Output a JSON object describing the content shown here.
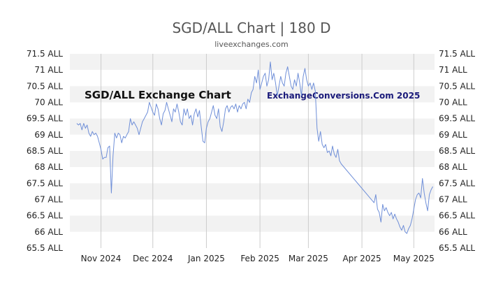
{
  "chart_data": {
    "type": "line",
    "title": "SGD/ALL Chart | 180 D",
    "subtitle": "liveexchanges.com",
    "watermark_left": "SGD/ALL Exchange Chart",
    "watermark_right": "ExchangeConversions.Com 2025",
    "xlabel": "",
    "ylabel": "",
    "grid": "horizontal-bands",
    "ylim": [
      65.5,
      71.5
    ],
    "y_ticks": [
      {
        "value": 71.5,
        "label": "71.5 ALL"
      },
      {
        "value": 71,
        "label": "71 ALL"
      },
      {
        "value": 70.5,
        "label": "70.5 ALL"
      },
      {
        "value": 70,
        "label": "70 ALL"
      },
      {
        "value": 69.5,
        "label": "69.5 ALL"
      },
      {
        "value": 69,
        "label": "69 ALL"
      },
      {
        "value": 68.5,
        "label": "68.5 ALL"
      },
      {
        "value": 68,
        "label": "68 ALL"
      },
      {
        "value": 67.5,
        "label": "67.5 ALL"
      },
      {
        "value": 67,
        "label": "67 ALL"
      },
      {
        "value": 66.5,
        "label": "66.5 ALL"
      },
      {
        "value": 66,
        "label": "66 ALL"
      },
      {
        "value": 65.5,
        "label": "65.5 ALL"
      }
    ],
    "xlim": [
      "2024-10-14",
      "2025-05-13"
    ],
    "x_ticks": [
      {
        "date": "2024-11-01",
        "label": "Nov 2024"
      },
      {
        "date": "2024-12-01",
        "label": "Dec 2024"
      },
      {
        "date": "2025-01-01",
        "label": "Jan 2025"
      },
      {
        "date": "2025-02-01",
        "label": "Feb 2025"
      },
      {
        "date": "2025-03-01",
        "label": "Mar 2025"
      },
      {
        "date": "2025-04-01",
        "label": "Apr 2025"
      },
      {
        "date": "2025-05-01",
        "label": "May 2025"
      }
    ],
    "series": [
      {
        "color": "#6f8fd8",
        "points": [
          [
            "2024-10-18",
            69.35
          ],
          [
            "2024-10-19",
            69.3
          ],
          [
            "2024-10-20",
            69.35
          ],
          [
            "2024-10-21",
            69.15
          ],
          [
            "2024-10-22",
            69.35
          ],
          [
            "2024-10-23",
            69.2
          ],
          [
            "2024-10-24",
            69.3
          ],
          [
            "2024-10-25",
            69.05
          ],
          [
            "2024-10-26",
            68.95
          ],
          [
            "2024-10-27",
            69.1
          ],
          [
            "2024-10-28",
            69.0
          ],
          [
            "2024-10-29",
            69.05
          ],
          [
            "2024-10-30",
            68.95
          ],
          [
            "2024-10-31",
            68.75
          ],
          [
            "2024-11-01",
            68.55
          ],
          [
            "2024-11-02",
            68.25
          ],
          [
            "2024-11-03",
            68.3
          ],
          [
            "2024-11-04",
            68.3
          ],
          [
            "2024-11-05",
            68.6
          ],
          [
            "2024-11-06",
            68.65
          ],
          [
            "2024-11-07",
            67.2
          ],
          [
            "2024-11-08",
            68.35
          ],
          [
            "2024-11-09",
            69.05
          ],
          [
            "2024-11-10",
            68.9
          ],
          [
            "2024-11-11",
            69.05
          ],
          [
            "2024-11-12",
            69.0
          ],
          [
            "2024-11-13",
            68.75
          ],
          [
            "2024-11-14",
            68.95
          ],
          [
            "2024-11-15",
            68.9
          ],
          [
            "2024-11-16",
            69.0
          ],
          [
            "2024-11-17",
            69.1
          ],
          [
            "2024-11-18",
            69.5
          ],
          [
            "2024-11-19",
            69.3
          ],
          [
            "2024-11-20",
            69.4
          ],
          [
            "2024-11-21",
            69.3
          ],
          [
            "2024-11-22",
            69.2
          ],
          [
            "2024-11-23",
            69.0
          ],
          [
            "2024-11-24",
            69.2
          ],
          [
            "2024-11-25",
            69.4
          ],
          [
            "2024-11-26",
            69.5
          ],
          [
            "2024-11-27",
            69.6
          ],
          [
            "2024-11-28",
            69.7
          ],
          [
            "2024-11-29",
            70.0
          ],
          [
            "2024-11-30",
            69.85
          ],
          [
            "2024-12-01",
            69.7
          ],
          [
            "2024-12-02",
            69.6
          ],
          [
            "2024-12-03",
            69.95
          ],
          [
            "2024-12-04",
            69.8
          ],
          [
            "2024-12-05",
            69.5
          ],
          [
            "2024-12-06",
            69.3
          ],
          [
            "2024-12-07",
            69.65
          ],
          [
            "2024-12-08",
            69.75
          ],
          [
            "2024-12-09",
            70.0
          ],
          [
            "2024-12-10",
            69.8
          ],
          [
            "2024-12-11",
            69.6
          ],
          [
            "2024-12-12",
            69.4
          ],
          [
            "2024-12-13",
            69.8
          ],
          [
            "2024-12-14",
            69.7
          ],
          [
            "2024-12-15",
            69.95
          ],
          [
            "2024-12-16",
            69.7
          ],
          [
            "2024-12-17",
            69.4
          ],
          [
            "2024-12-18",
            69.3
          ],
          [
            "2024-12-19",
            69.8
          ],
          [
            "2024-12-20",
            69.6
          ],
          [
            "2024-12-21",
            69.8
          ],
          [
            "2024-12-22",
            69.5
          ],
          [
            "2024-12-23",
            69.6
          ],
          [
            "2024-12-24",
            69.3
          ],
          [
            "2024-12-25",
            69.65
          ],
          [
            "2024-12-26",
            69.8
          ],
          [
            "2024-12-27",
            69.55
          ],
          [
            "2024-12-28",
            69.75
          ],
          [
            "2024-12-29",
            69.25
          ],
          [
            "2024-12-30",
            68.8
          ],
          [
            "2024-12-31",
            68.75
          ],
          [
            "2025-01-01",
            69.2
          ],
          [
            "2025-01-02",
            69.4
          ],
          [
            "2025-01-03",
            69.5
          ],
          [
            "2025-01-04",
            69.7
          ],
          [
            "2025-01-05",
            69.9
          ],
          [
            "2025-01-06",
            69.6
          ],
          [
            "2025-01-07",
            69.5
          ],
          [
            "2025-01-08",
            69.8
          ],
          [
            "2025-01-09",
            69.25
          ],
          [
            "2025-01-10",
            69.1
          ],
          [
            "2025-01-11",
            69.4
          ],
          [
            "2025-01-12",
            69.8
          ],
          [
            "2025-01-13",
            69.9
          ],
          [
            "2025-01-14",
            69.7
          ],
          [
            "2025-01-15",
            69.85
          ],
          [
            "2025-01-16",
            69.9
          ],
          [
            "2025-01-17",
            69.8
          ],
          [
            "2025-01-18",
            69.95
          ],
          [
            "2025-01-19",
            69.7
          ],
          [
            "2025-01-20",
            69.9
          ],
          [
            "2025-01-21",
            69.8
          ],
          [
            "2025-01-22",
            69.95
          ],
          [
            "2025-01-23",
            70.0
          ],
          [
            "2025-01-24",
            69.8
          ],
          [
            "2025-01-25",
            70.1
          ],
          [
            "2025-01-26",
            70.0
          ],
          [
            "2025-01-27",
            70.3
          ],
          [
            "2025-01-28",
            70.4
          ],
          [
            "2025-01-29",
            70.8
          ],
          [
            "2025-01-30",
            70.6
          ],
          [
            "2025-01-31",
            71.0
          ],
          [
            "2025-02-01",
            70.4
          ],
          [
            "2025-02-02",
            70.6
          ],
          [
            "2025-02-03",
            70.8
          ],
          [
            "2025-02-04",
            70.9
          ],
          [
            "2025-02-05",
            70.5
          ],
          [
            "2025-02-06",
            70.7
          ],
          [
            "2025-02-07",
            71.25
          ],
          [
            "2025-02-08",
            70.7
          ],
          [
            "2025-02-09",
            70.9
          ],
          [
            "2025-02-10",
            70.6
          ],
          [
            "2025-02-11",
            70.2
          ],
          [
            "2025-02-12",
            70.5
          ],
          [
            "2025-02-13",
            70.8
          ],
          [
            "2025-02-14",
            70.6
          ],
          [
            "2025-02-15",
            70.5
          ],
          [
            "2025-02-16",
            70.9
          ],
          [
            "2025-02-17",
            71.1
          ],
          [
            "2025-02-18",
            70.8
          ],
          [
            "2025-02-19",
            70.5
          ],
          [
            "2025-02-20",
            70.4
          ],
          [
            "2025-02-21",
            70.7
          ],
          [
            "2025-02-22",
            70.5
          ],
          [
            "2025-02-23",
            70.9
          ],
          [
            "2025-02-24",
            70.6
          ],
          [
            "2025-02-25",
            70.2
          ],
          [
            "2025-02-26",
            70.8
          ],
          [
            "2025-02-27",
            71.05
          ],
          [
            "2025-02-28",
            70.7
          ],
          [
            "2025-03-01",
            70.5
          ],
          [
            "2025-03-02",
            70.6
          ],
          [
            "2025-03-03",
            70.4
          ],
          [
            "2025-03-04",
            70.6
          ],
          [
            "2025-03-05",
            70.35
          ],
          [
            "2025-03-06",
            69.2
          ],
          [
            "2025-03-07",
            68.8
          ],
          [
            "2025-03-08",
            69.1
          ],
          [
            "2025-03-09",
            68.7
          ],
          [
            "2025-03-10",
            68.6
          ],
          [
            "2025-03-11",
            68.7
          ],
          [
            "2025-03-12",
            68.45
          ],
          [
            "2025-03-13",
            68.5
          ],
          [
            "2025-03-14",
            68.35
          ],
          [
            "2025-03-15",
            68.65
          ],
          [
            "2025-03-16",
            68.4
          ],
          [
            "2025-03-17",
            68.3
          ],
          [
            "2025-03-18",
            68.55
          ],
          [
            "2025-03-19",
            68.2
          ],
          [
            "2025-03-20",
            68.1
          ],
          [
            "2025-04-08",
            66.9
          ],
          [
            "2025-04-09",
            67.15
          ],
          [
            "2025-04-10",
            66.7
          ],
          [
            "2025-04-11",
            66.6
          ],
          [
            "2025-04-12",
            66.3
          ],
          [
            "2025-04-13",
            66.85
          ],
          [
            "2025-04-14",
            66.65
          ],
          [
            "2025-04-15",
            66.75
          ],
          [
            "2025-04-16",
            66.6
          ],
          [
            "2025-04-17",
            66.5
          ],
          [
            "2025-04-18",
            66.6
          ],
          [
            "2025-04-19",
            66.4
          ],
          [
            "2025-04-20",
            66.55
          ],
          [
            "2025-04-21",
            66.4
          ],
          [
            "2025-04-22",
            66.3
          ],
          [
            "2025-04-23",
            66.15
          ],
          [
            "2025-04-24",
            66.05
          ],
          [
            "2025-04-25",
            66.2
          ],
          [
            "2025-04-26",
            66.0
          ],
          [
            "2025-04-27",
            65.95
          ],
          [
            "2025-04-28",
            66.1
          ],
          [
            "2025-04-29",
            66.2
          ],
          [
            "2025-04-30",
            66.4
          ],
          [
            "2025-05-01",
            66.7
          ],
          [
            "2025-05-02",
            67.0
          ],
          [
            "2025-05-03",
            67.15
          ],
          [
            "2025-05-04",
            67.2
          ],
          [
            "2025-05-05",
            67.05
          ],
          [
            "2025-05-06",
            67.65
          ],
          [
            "2025-05-07",
            67.2
          ],
          [
            "2025-05-08",
            66.9
          ],
          [
            "2025-05-09",
            66.65
          ],
          [
            "2025-05-10",
            67.15
          ],
          [
            "2025-05-11",
            67.3
          ],
          [
            "2025-05-12",
            67.4
          ]
        ]
      }
    ]
  }
}
